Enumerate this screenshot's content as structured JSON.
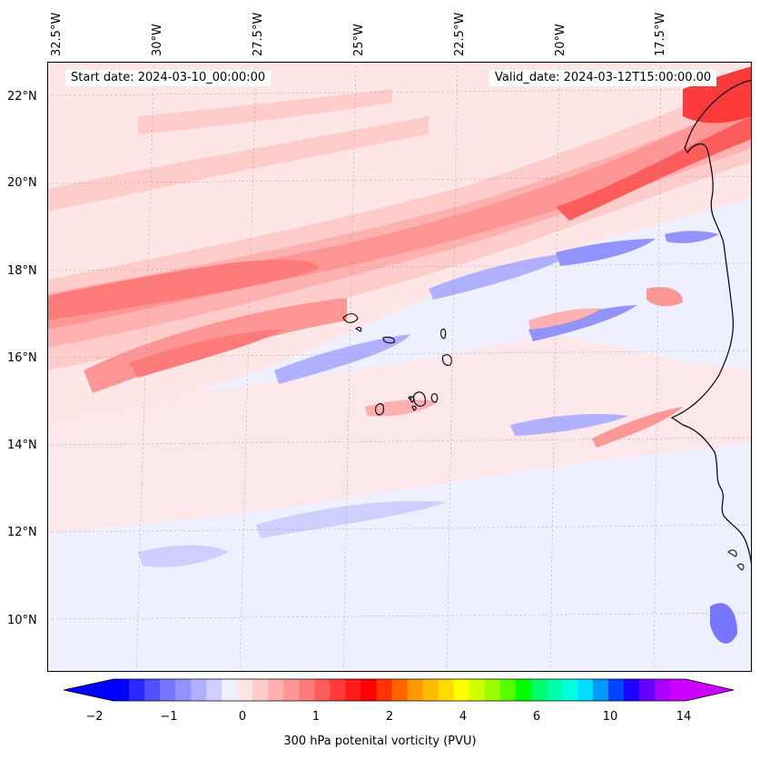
{
  "map": {
    "longitude_labels": [
      "32.5°W",
      "30°W",
      "27.5°W",
      "25°W",
      "22.5°W",
      "20°W",
      "17.5°W"
    ],
    "latitude_labels": [
      "22°N",
      "20°N",
      "18°N",
      "16°N",
      "14°N",
      "12°N",
      "10°N"
    ],
    "start_date": "Start date: 2024-03-10_00:00:00",
    "valid_date": "Valid_date: 2024-03-12T15:00:00.00",
    "islands": "Cape Verde islands",
    "coastline": "West African coastline"
  },
  "colorbar": {
    "title": "300 hPa potenital vorticity (PVU)",
    "tick_labels": [
      "−2",
      "−1",
      "0",
      "1",
      "2",
      "4",
      "6",
      "10",
      "14"
    ],
    "colors": [
      "#0000ff",
      "#2a2aff",
      "#5050ff",
      "#7676ff",
      "#9393ff",
      "#b0b0ff",
      "#cfcfff",
      "#eef0ff",
      "#ffe6e6",
      "#ffcccc",
      "#ffb0b0",
      "#ff9696",
      "#ff7a7a",
      "#ff5c5c",
      "#ff3a3a",
      "#ff1a1a",
      "#ff0000",
      "#ff3300",
      "#ff6600",
      "#ff9900",
      "#ffbb00",
      "#ffdd00",
      "#ffff00",
      "#ccff00",
      "#99ff00",
      "#55ff00",
      "#00ff00",
      "#00ff66",
      "#00ffaa",
      "#00ffdd",
      "#00ddff",
      "#0099ff",
      "#0044ff",
      "#2200ff",
      "#6600ff",
      "#aa00ff",
      "#cc00ff"
    ],
    "underflow_color": "#0000ff",
    "overflow_color": "#cc00ff"
  }
}
